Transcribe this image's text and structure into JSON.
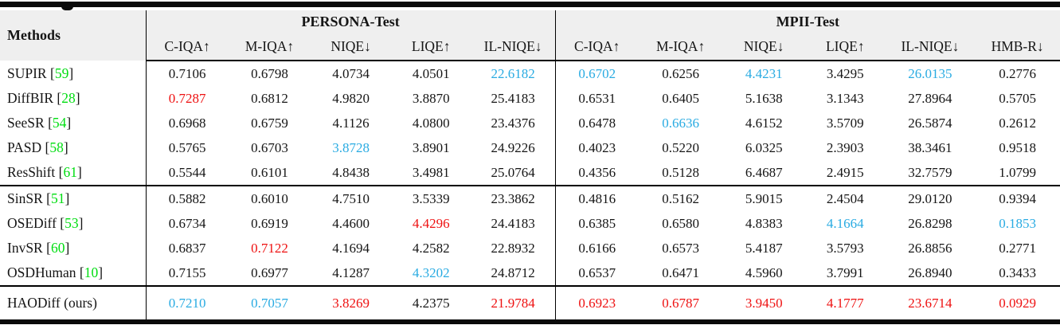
{
  "table": {
    "methods_header": "Methods",
    "citation_open": " [",
    "citation_close": "]",
    "groups": [
      {
        "label": "PERSONA-Test",
        "columns": [
          "C-IQA↑",
          "M-IQA↑",
          "NIQE↓",
          "LIQE↑",
          "IL-NIQE↓"
        ]
      },
      {
        "label": "MPII-Test",
        "columns": [
          "C-IQA↑",
          "M-IQA↑",
          "NIQE↓",
          "LIQE↑",
          "IL-NIQE↓",
          "HMB-R↓"
        ]
      }
    ],
    "colors": {
      "best": "#ee1111",
      "second_best": "#29abe2",
      "citation": "#00dd11",
      "header_bg": "#efefef",
      "rule": "#000000",
      "text": "#151515"
    },
    "highlight_legend": {
      "r": "best",
      "b": "second-best",
      "n": "normal"
    },
    "row_groups": [
      {
        "rows": [
          {
            "method": "SUPIR",
            "citation": "59",
            "values": [
              [
                "0.7106",
                "n"
              ],
              [
                "0.6798",
                "n"
              ],
              [
                "4.0734",
                "n"
              ],
              [
                "4.0501",
                "n"
              ],
              [
                "22.6182",
                "b"
              ],
              [
                "0.6702",
                "b"
              ],
              [
                "0.6256",
                "n"
              ],
              [
                "4.4231",
                "b"
              ],
              [
                "3.4295",
                "n"
              ],
              [
                "26.0135",
                "b"
              ],
              [
                "0.2776",
                "n"
              ]
            ]
          },
          {
            "method": "DiffBIR",
            "citation": "28",
            "values": [
              [
                "0.7287",
                "r"
              ],
              [
                "0.6812",
                "n"
              ],
              [
                "4.9820",
                "n"
              ],
              [
                "3.8870",
                "n"
              ],
              [
                "25.4183",
                "n"
              ],
              [
                "0.6531",
                "n"
              ],
              [
                "0.6405",
                "n"
              ],
              [
                "5.1638",
                "n"
              ],
              [
                "3.1343",
                "n"
              ],
              [
                "27.8964",
                "n"
              ],
              [
                "0.5705",
                "n"
              ]
            ]
          },
          {
            "method": "SeeSR",
            "citation": "54",
            "values": [
              [
                "0.6968",
                "n"
              ],
              [
                "0.6759",
                "n"
              ],
              [
                "4.1126",
                "n"
              ],
              [
                "4.0800",
                "n"
              ],
              [
                "23.4376",
                "n"
              ],
              [
                "0.6478",
                "n"
              ],
              [
                "0.6636",
                "b"
              ],
              [
                "4.6152",
                "n"
              ],
              [
                "3.5709",
                "n"
              ],
              [
                "26.5874",
                "n"
              ],
              [
                "0.2612",
                "n"
              ]
            ]
          },
          {
            "method": "PASD",
            "citation": "58",
            "values": [
              [
                "0.5765",
                "n"
              ],
              [
                "0.6703",
                "n"
              ],
              [
                "3.8728",
                "b"
              ],
              [
                "3.8901",
                "n"
              ],
              [
                "24.9226",
                "n"
              ],
              [
                "0.4023",
                "n"
              ],
              [
                "0.5220",
                "n"
              ],
              [
                "6.0325",
                "n"
              ],
              [
                "2.3903",
                "n"
              ],
              [
                "38.3461",
                "n"
              ],
              [
                "0.9518",
                "n"
              ]
            ]
          },
          {
            "method": "ResShift",
            "citation": "61",
            "values": [
              [
                "0.5544",
                "n"
              ],
              [
                "0.6101",
                "n"
              ],
              [
                "4.8438",
                "n"
              ],
              [
                "3.4981",
                "n"
              ],
              [
                "25.0764",
                "n"
              ],
              [
                "0.4356",
                "n"
              ],
              [
                "0.5128",
                "n"
              ],
              [
                "6.4687",
                "n"
              ],
              [
                "2.4915",
                "n"
              ],
              [
                "32.7579",
                "n"
              ],
              [
                "1.0799",
                "n"
              ]
            ]
          }
        ]
      },
      {
        "rows": [
          {
            "method": "SinSR",
            "citation": "51",
            "values": [
              [
                "0.5882",
                "n"
              ],
              [
                "0.6010",
                "n"
              ],
              [
                "4.7510",
                "n"
              ],
              [
                "3.5339",
                "n"
              ],
              [
                "23.3862",
                "n"
              ],
              [
                "0.4816",
                "n"
              ],
              [
                "0.5162",
                "n"
              ],
              [
                "5.9015",
                "n"
              ],
              [
                "2.4504",
                "n"
              ],
              [
                "29.0120",
                "n"
              ],
              [
                "0.9394",
                "n"
              ]
            ]
          },
          {
            "method": "OSEDiff",
            "citation": "53",
            "values": [
              [
                "0.6734",
                "n"
              ],
              [
                "0.6919",
                "n"
              ],
              [
                "4.4600",
                "n"
              ],
              [
                "4.4296",
                "r"
              ],
              [
                "24.4183",
                "n"
              ],
              [
                "0.6385",
                "n"
              ],
              [
                "0.6580",
                "n"
              ],
              [
                "4.8383",
                "n"
              ],
              [
                "4.1664",
                "b"
              ],
              [
                "26.8298",
                "n"
              ],
              [
                "0.1853",
                "b"
              ]
            ]
          },
          {
            "method": "InvSR",
            "citation": "60",
            "values": [
              [
                "0.6837",
                "n"
              ],
              [
                "0.7122",
                "r"
              ],
              [
                "4.1694",
                "n"
              ],
              [
                "4.2582",
                "n"
              ],
              [
                "22.8932",
                "n"
              ],
              [
                "0.6166",
                "n"
              ],
              [
                "0.6573",
                "n"
              ],
              [
                "5.4187",
                "n"
              ],
              [
                "3.5793",
                "n"
              ],
              [
                "26.8856",
                "n"
              ],
              [
                "0.2771",
                "n"
              ]
            ]
          },
          {
            "method": "OSDHuman",
            "citation": "10",
            "values": [
              [
                "0.7155",
                "n"
              ],
              [
                "0.6977",
                "n"
              ],
              [
                "4.1287",
                "n"
              ],
              [
                "4.3202",
                "b"
              ],
              [
                "24.8712",
                "n"
              ],
              [
                "0.6537",
                "n"
              ],
              [
                "0.6471",
                "n"
              ],
              [
                "4.5960",
                "n"
              ],
              [
                "3.7991",
                "n"
              ],
              [
                "26.8940",
                "n"
              ],
              [
                "0.3433",
                "n"
              ]
            ]
          }
        ]
      },
      {
        "rows": [
          {
            "method": "HAODiff (ours)",
            "citation": null,
            "values": [
              [
                "0.7210",
                "b"
              ],
              [
                "0.7057",
                "b"
              ],
              [
                "3.8269",
                "r"
              ],
              [
                "4.2375",
                "n"
              ],
              [
                "21.9784",
                "r"
              ],
              [
                "0.6923",
                "r"
              ],
              [
                "0.6787",
                "r"
              ],
              [
                "3.9450",
                "r"
              ],
              [
                "4.1777",
                "r"
              ],
              [
                "23.6714",
                "r"
              ],
              [
                "0.0929",
                "r"
              ]
            ]
          }
        ]
      }
    ]
  }
}
